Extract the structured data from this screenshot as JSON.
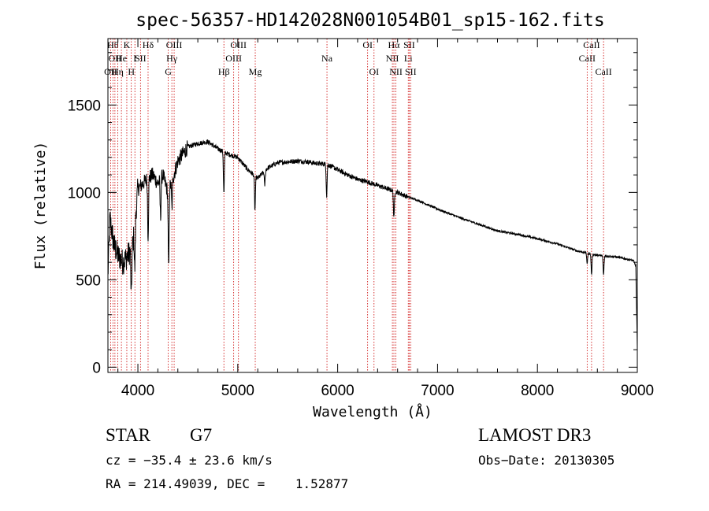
{
  "chart_data": {
    "type": "line",
    "title": "spec-56357-HD142028N001054B01_sp15-162.fits",
    "xlabel": "Wavelength (Å)",
    "ylabel": "Flux (relative)",
    "xlim": [
      3700,
      9000
    ],
    "ylim": [
      -30,
      1880
    ],
    "x_ticks": [
      4000,
      5000,
      6000,
      7000,
      8000,
      9000
    ],
    "x_tick_labels": [
      "4000",
      "5000",
      "6000",
      "7000",
      "8000",
      "9000"
    ],
    "y_ticks": [
      0,
      500,
      1000,
      1500
    ],
    "y_tick_labels": [
      "0",
      "500",
      "1000",
      "1500"
    ],
    "series": [
      {
        "name": "spectrum",
        "continuum": [
          [
            3700,
            520
          ],
          [
            3720,
            850
          ],
          [
            3760,
            700
          ],
          [
            3800,
            640
          ],
          [
            3850,
            600
          ],
          [
            3900,
            640
          ],
          [
            3950,
            700
          ],
          [
            4000,
            1020
          ],
          [
            4050,
            1050
          ],
          [
            4100,
            1080
          ],
          [
            4150,
            1100
          ],
          [
            4200,
            1050
          ],
          [
            4250,
            1100
          ],
          [
            4300,
            1000
          ],
          [
            4350,
            1080
          ],
          [
            4400,
            1180
          ],
          [
            4450,
            1220
          ],
          [
            4500,
            1260
          ],
          [
            4600,
            1280
          ],
          [
            4700,
            1290
          ],
          [
            4800,
            1250
          ],
          [
            4900,
            1220
          ],
          [
            5000,
            1200
          ],
          [
            5100,
            1130
          ],
          [
            5200,
            1080
          ],
          [
            5300,
            1140
          ],
          [
            5400,
            1170
          ],
          [
            5500,
            1175
          ],
          [
            5600,
            1180
          ],
          [
            5700,
            1175
          ],
          [
            5800,
            1165
          ],
          [
            5900,
            1160
          ],
          [
            6000,
            1130
          ],
          [
            6100,
            1100
          ],
          [
            6200,
            1075
          ],
          [
            6300,
            1060
          ],
          [
            6400,
            1040
          ],
          [
            6500,
            1020
          ],
          [
            6600,
            1000
          ],
          [
            6700,
            975
          ],
          [
            6800,
            955
          ],
          [
            6900,
            930
          ],
          [
            7000,
            905
          ],
          [
            7200,
            860
          ],
          [
            7400,
            820
          ],
          [
            7600,
            780
          ],
          [
            7800,
            760
          ],
          [
            8000,
            735
          ],
          [
            8200,
            705
          ],
          [
            8400,
            665
          ],
          [
            8600,
            640
          ],
          [
            8800,
            630
          ],
          [
            8960,
            610
          ],
          [
            8985,
            580
          ],
          [
            9000,
            100
          ]
        ],
        "absorption": [
          [
            3934,
            290
          ],
          [
            3969,
            260
          ],
          [
            4102,
            330
          ],
          [
            4227,
            220
          ],
          [
            4308,
            460
          ],
          [
            4341,
            150
          ],
          [
            4861,
            240
          ],
          [
            5172,
            200
          ],
          [
            5270,
            80
          ],
          [
            5890,
            180
          ],
          [
            6563,
            160
          ],
          [
            8498,
            60
          ],
          [
            8542,
            120
          ],
          [
            8662,
            110
          ]
        ]
      }
    ],
    "lines": [
      {
        "wavelength": 3727,
        "label": "OII",
        "row": 2
      },
      {
        "wavelength": 3750,
        "label": "Hθ",
        "row": 0
      },
      {
        "wavelength": 3770,
        "label": "OII",
        "row": 1
      },
      {
        "wavelength": 3798,
        "label": "Hη",
        "row": 2
      },
      {
        "wavelength": 3835,
        "label": "He",
        "row": 1
      },
      {
        "wavelength": 3889,
        "label": "K",
        "row": 0
      },
      {
        "wavelength": 3934,
        "label": "H",
        "row": 2
      },
      {
        "wavelength": 3970,
        "label": "I",
        "row": 1
      },
      {
        "wavelength": 4026,
        "label": "SII",
        "row": 1
      },
      {
        "wavelength": 4102,
        "label": "Hδ",
        "row": 0
      },
      {
        "wavelength": 4304,
        "label": "G",
        "row": 2
      },
      {
        "wavelength": 4340,
        "label": "Hγ",
        "row": 1
      },
      {
        "wavelength": 4363,
        "label": "OIII",
        "row": 0
      },
      {
        "wavelength": 4861,
        "label": "Hβ",
        "row": 2
      },
      {
        "wavelength": 4959,
        "label": "OIII",
        "row": 1
      },
      {
        "wavelength": 5007,
        "label": "OIII",
        "row": 0
      },
      {
        "wavelength": 5175,
        "label": "Mg",
        "row": 2
      },
      {
        "wavelength": 5893,
        "label": "Na",
        "row": 1
      },
      {
        "wavelength": 6300,
        "label": "OI",
        "row": 0
      },
      {
        "wavelength": 6364,
        "label": "OI",
        "row": 2
      },
      {
        "wavelength": 6548,
        "label": "NII",
        "row": 1
      },
      {
        "wavelength": 6563,
        "label": "Hα",
        "row": 0
      },
      {
        "wavelength": 6583,
        "label": "NII",
        "row": 2
      },
      {
        "wavelength": 6707,
        "label": "Li",
        "row": 1
      },
      {
        "wavelength": 6716,
        "label": "SII",
        "row": 0
      },
      {
        "wavelength": 6731,
        "label": "SII",
        "row": 2
      },
      {
        "wavelength": 8498,
        "label": "CaII",
        "row": 1
      },
      {
        "wavelength": 8542,
        "label": "CaII",
        "row": 0
      },
      {
        "wavelength": 8662,
        "label": "CaII",
        "row": 2
      }
    ]
  },
  "info": {
    "class": "STAR",
    "subclass": "G7",
    "survey": "LAMOST DR3",
    "cz": "cz = −35.4 ± 23.6 km/s",
    "obs_date": "Obs−Date: 20130305",
    "radec": "RA = 214.49039, DEC =    1.52877"
  },
  "colors": {
    "spectrum": "#000000",
    "lines": "#cc0000",
    "axes": "#000000"
  }
}
